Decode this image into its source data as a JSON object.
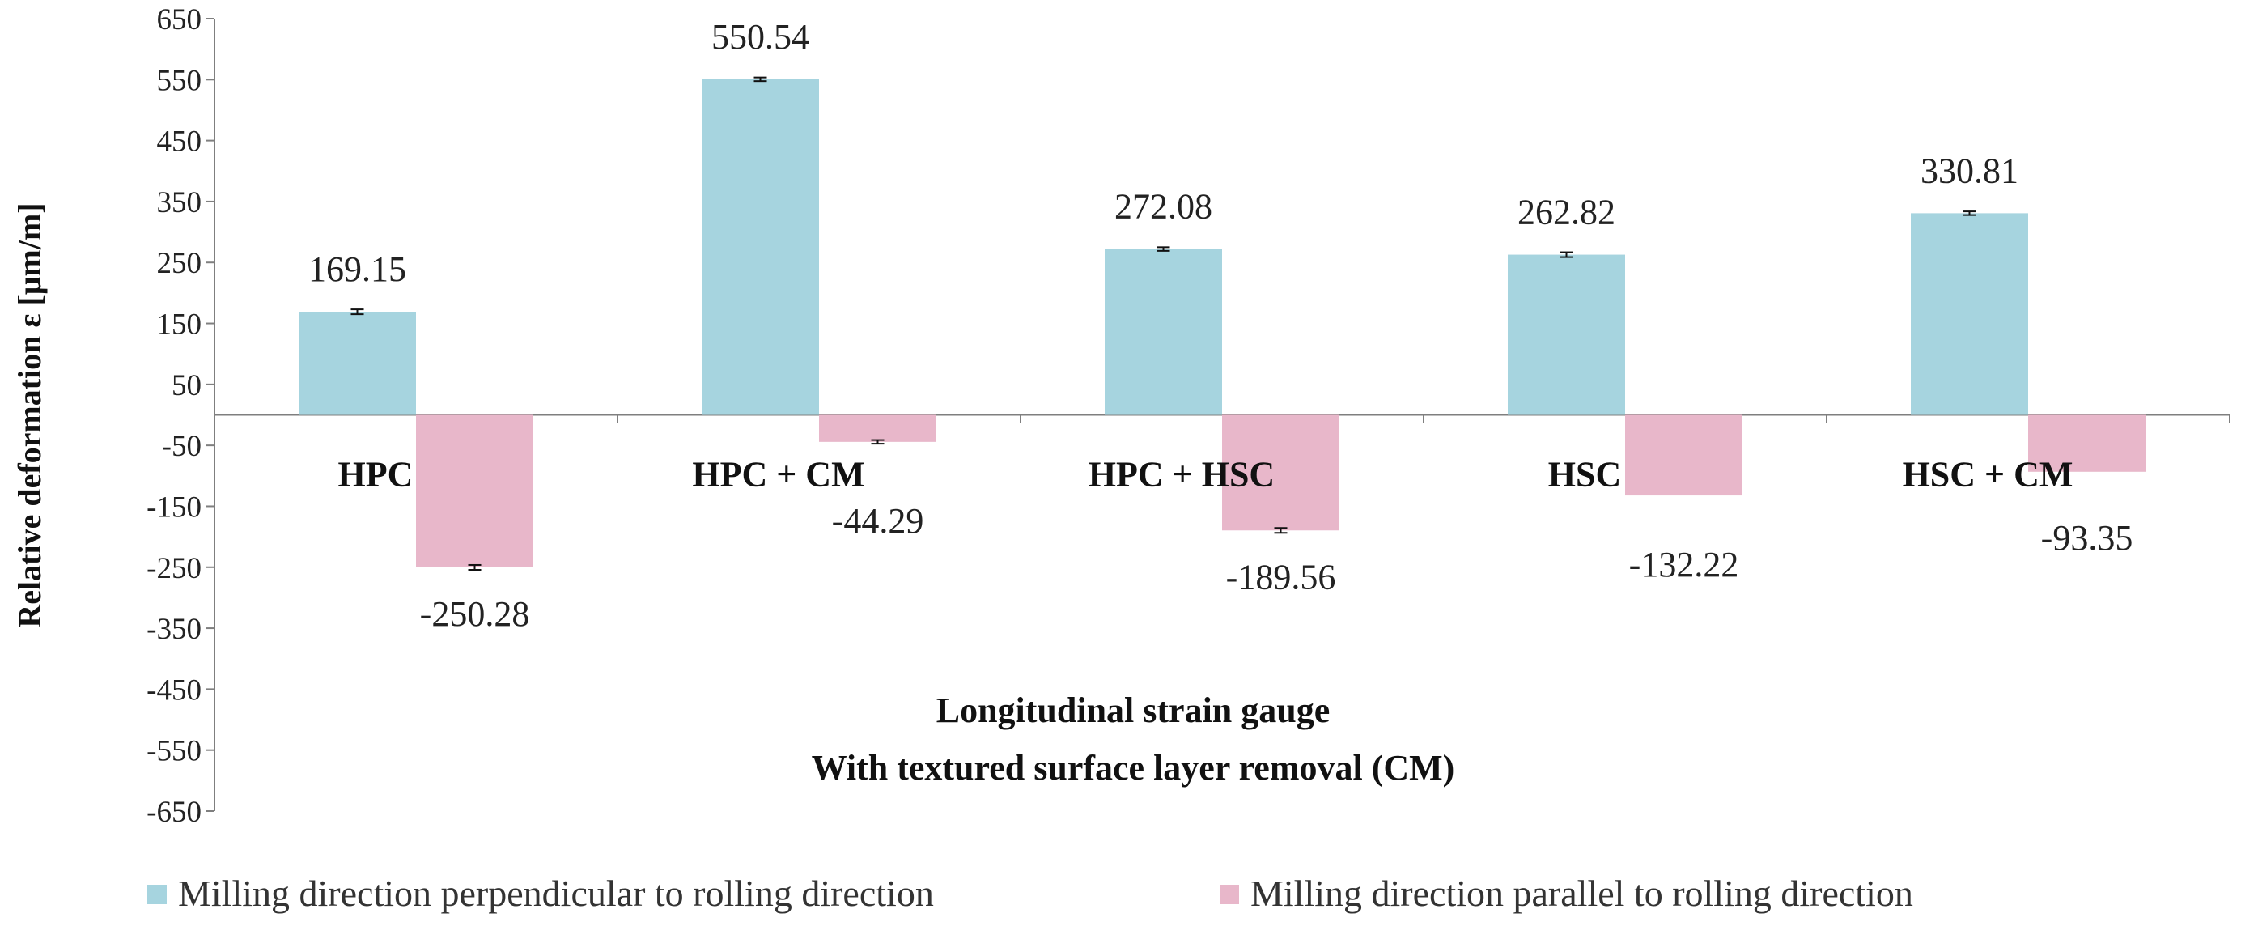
{
  "chart_data": {
    "type": "bar",
    "categories": [
      "HPC",
      "HPC + CM",
      "HPC + HSC",
      "HSC",
      "HSC + CM"
    ],
    "series": [
      {
        "name": "Milling direction perpendicular to rolling direction",
        "values": [
          169.15,
          550.54,
          272.08,
          262.82,
          330.81
        ],
        "labels": [
          "169.15",
          "550.54",
          "272.08",
          "262.82",
          "330.81"
        ],
        "error": [
          4,
          3,
          3,
          4,
          3
        ],
        "color": "#a6d4df"
      },
      {
        "name": "Milling direction parallel to rolling direction",
        "values": [
          -250.28,
          -44.29,
          -189.56,
          -132.22,
          -93.35
        ],
        "labels": [
          "-250.28",
          "-44.29",
          "-189.56",
          "-132.22",
          "-93.35"
        ],
        "error": [
          4,
          3,
          4,
          0,
          0
        ],
        "color": "#e8b7ca"
      }
    ],
    "xlabel_lines": [
      "Longitudinal strain gauge",
      "With textured surface layer removal (CM)"
    ],
    "ylabel": "Relative deformation ε [μm/m]",
    "ylim": [
      -650,
      650
    ],
    "yticks": [
      650,
      550,
      450,
      350,
      250,
      150,
      50,
      -50,
      -150,
      -250,
      -350,
      -450,
      -550,
      -650
    ],
    "grid": false,
    "legend": "bottom"
  }
}
